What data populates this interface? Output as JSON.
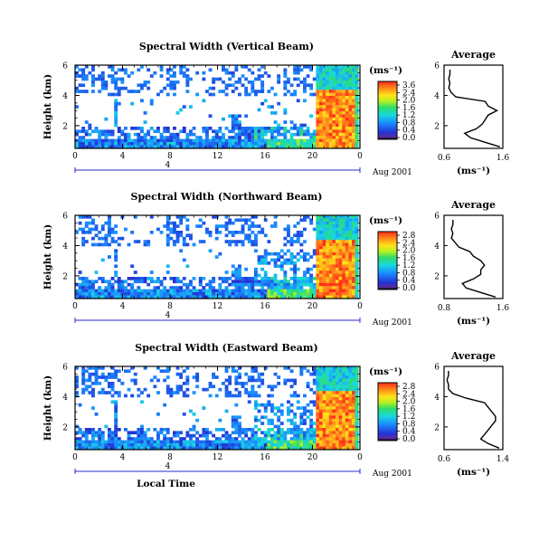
{
  "chart_data": [
    {
      "type": "heatmap",
      "title": "Spectral Width (Vertical Beam)",
      "xlabel": "",
      "ylabel": "Height (km)",
      "x_ticks": [
        "0",
        "4",
        "8",
        "12",
        "16",
        "20",
        "0"
      ],
      "y_ticks": [
        "6",
        "4",
        "2"
      ],
      "xlim": [
        0,
        24
      ],
      "ylim": [
        0.5,
        6
      ],
      "date_bar": {
        "label": "4",
        "date": "Aug 2001"
      },
      "colorbar": {
        "unit": "(ms⁻¹)",
        "ticks": [
          "3.6",
          "2.4",
          "2.0",
          "1.6",
          "1.2",
          "0.8",
          "0.4",
          "0.0"
        ]
      },
      "average_profile": {
        "title": "Average",
        "xlabel": "(ms⁻¹)",
        "x_ticks": [
          "0.6",
          "1.6"
        ],
        "y_ticks": [
          "6",
          "4",
          "2"
        ],
        "xlim": [
          0.6,
          1.6
        ],
        "ylim": [
          0.5,
          6
        ],
        "height": [
          0.6,
          0.9,
          1.2,
          1.5,
          1.8,
          2.1,
          2.4,
          2.7,
          3.0,
          3.3,
          3.6,
          3.9,
          4.2,
          4.5,
          4.8,
          5.1,
          5.4,
          5.7
        ],
        "width": [
          1.55,
          1.3,
          1.05,
          0.95,
          1.15,
          1.25,
          1.3,
          1.35,
          1.5,
          1.35,
          1.3,
          0.8,
          0.72,
          0.68,
          0.7,
          0.68,
          0.7,
          0.7
        ]
      }
    },
    {
      "type": "heatmap",
      "title": "Spectral Width (Northward Beam)",
      "xlabel": "",
      "ylabel": "Height (km)",
      "x_ticks": [
        "0",
        "4",
        "8",
        "12",
        "16",
        "20",
        "0"
      ],
      "y_ticks": [
        "6",
        "4",
        "2"
      ],
      "xlim": [
        0,
        24
      ],
      "ylim": [
        0.5,
        6
      ],
      "date_bar": {
        "label": "4",
        "date": "Aug 2001"
      },
      "colorbar": {
        "unit": "(ms⁻¹)",
        "ticks": [
          "2.8",
          "2.4",
          "2.0",
          "1.6",
          "1.2",
          "0.8",
          "0.4",
          "0.0"
        ]
      },
      "average_profile": {
        "title": "Average",
        "xlabel": "(ms⁻¹)",
        "x_ticks": [
          "0.8",
          "1.6"
        ],
        "y_ticks": [
          "6",
          "4",
          "2"
        ],
        "xlim": [
          0.8,
          1.6
        ],
        "ylim": [
          0.5,
          6
        ],
        "height": [
          0.6,
          0.9,
          1.2,
          1.5,
          1.8,
          2.1,
          2.4,
          2.7,
          3.0,
          3.3,
          3.6,
          3.9,
          4.2,
          4.5,
          4.8,
          5.1,
          5.4,
          5.7
        ],
        "width": [
          1.5,
          1.3,
          1.1,
          1.05,
          1.2,
          1.3,
          1.3,
          1.35,
          1.3,
          1.2,
          1.15,
          1.0,
          0.95,
          0.9,
          0.92,
          0.9,
          0.92,
          0.92
        ]
      }
    },
    {
      "type": "heatmap",
      "title": "Spectral Width (Eastward Beam)",
      "xlabel": "Local Time",
      "ylabel": "Height (km)",
      "x_ticks": [
        "0",
        "4",
        "8",
        "12",
        "16",
        "20",
        "0"
      ],
      "y_ticks": [
        "6",
        "4",
        "2"
      ],
      "xlim": [
        0,
        24
      ],
      "ylim": [
        0.5,
        6
      ],
      "date_bar": {
        "label": "4",
        "date": "Aug 2001"
      },
      "colorbar": {
        "unit": "(ms⁻¹)",
        "ticks": [
          "2.8",
          "2.4",
          "2.0",
          "1.6",
          "1.2",
          "0.8",
          "0.4",
          "0.0"
        ]
      },
      "average_profile": {
        "title": "Average",
        "xlabel": "(ms⁻¹)",
        "x_ticks": [
          "0.6",
          "1.4"
        ],
        "y_ticks": [
          "6",
          "4",
          "2"
        ],
        "xlim": [
          0.6,
          1.4
        ],
        "ylim": [
          0.5,
          6
        ],
        "height": [
          0.6,
          0.9,
          1.2,
          1.5,
          1.8,
          2.1,
          2.4,
          2.7,
          3.0,
          3.3,
          3.6,
          3.9,
          4.2,
          4.5,
          4.8,
          5.1,
          5.4,
          5.7
        ],
        "width": [
          1.35,
          1.2,
          1.1,
          1.15,
          1.2,
          1.25,
          1.3,
          1.3,
          1.25,
          1.2,
          1.15,
          0.9,
          0.72,
          0.66,
          0.66,
          0.64,
          0.66,
          0.66
        ]
      }
    }
  ]
}
